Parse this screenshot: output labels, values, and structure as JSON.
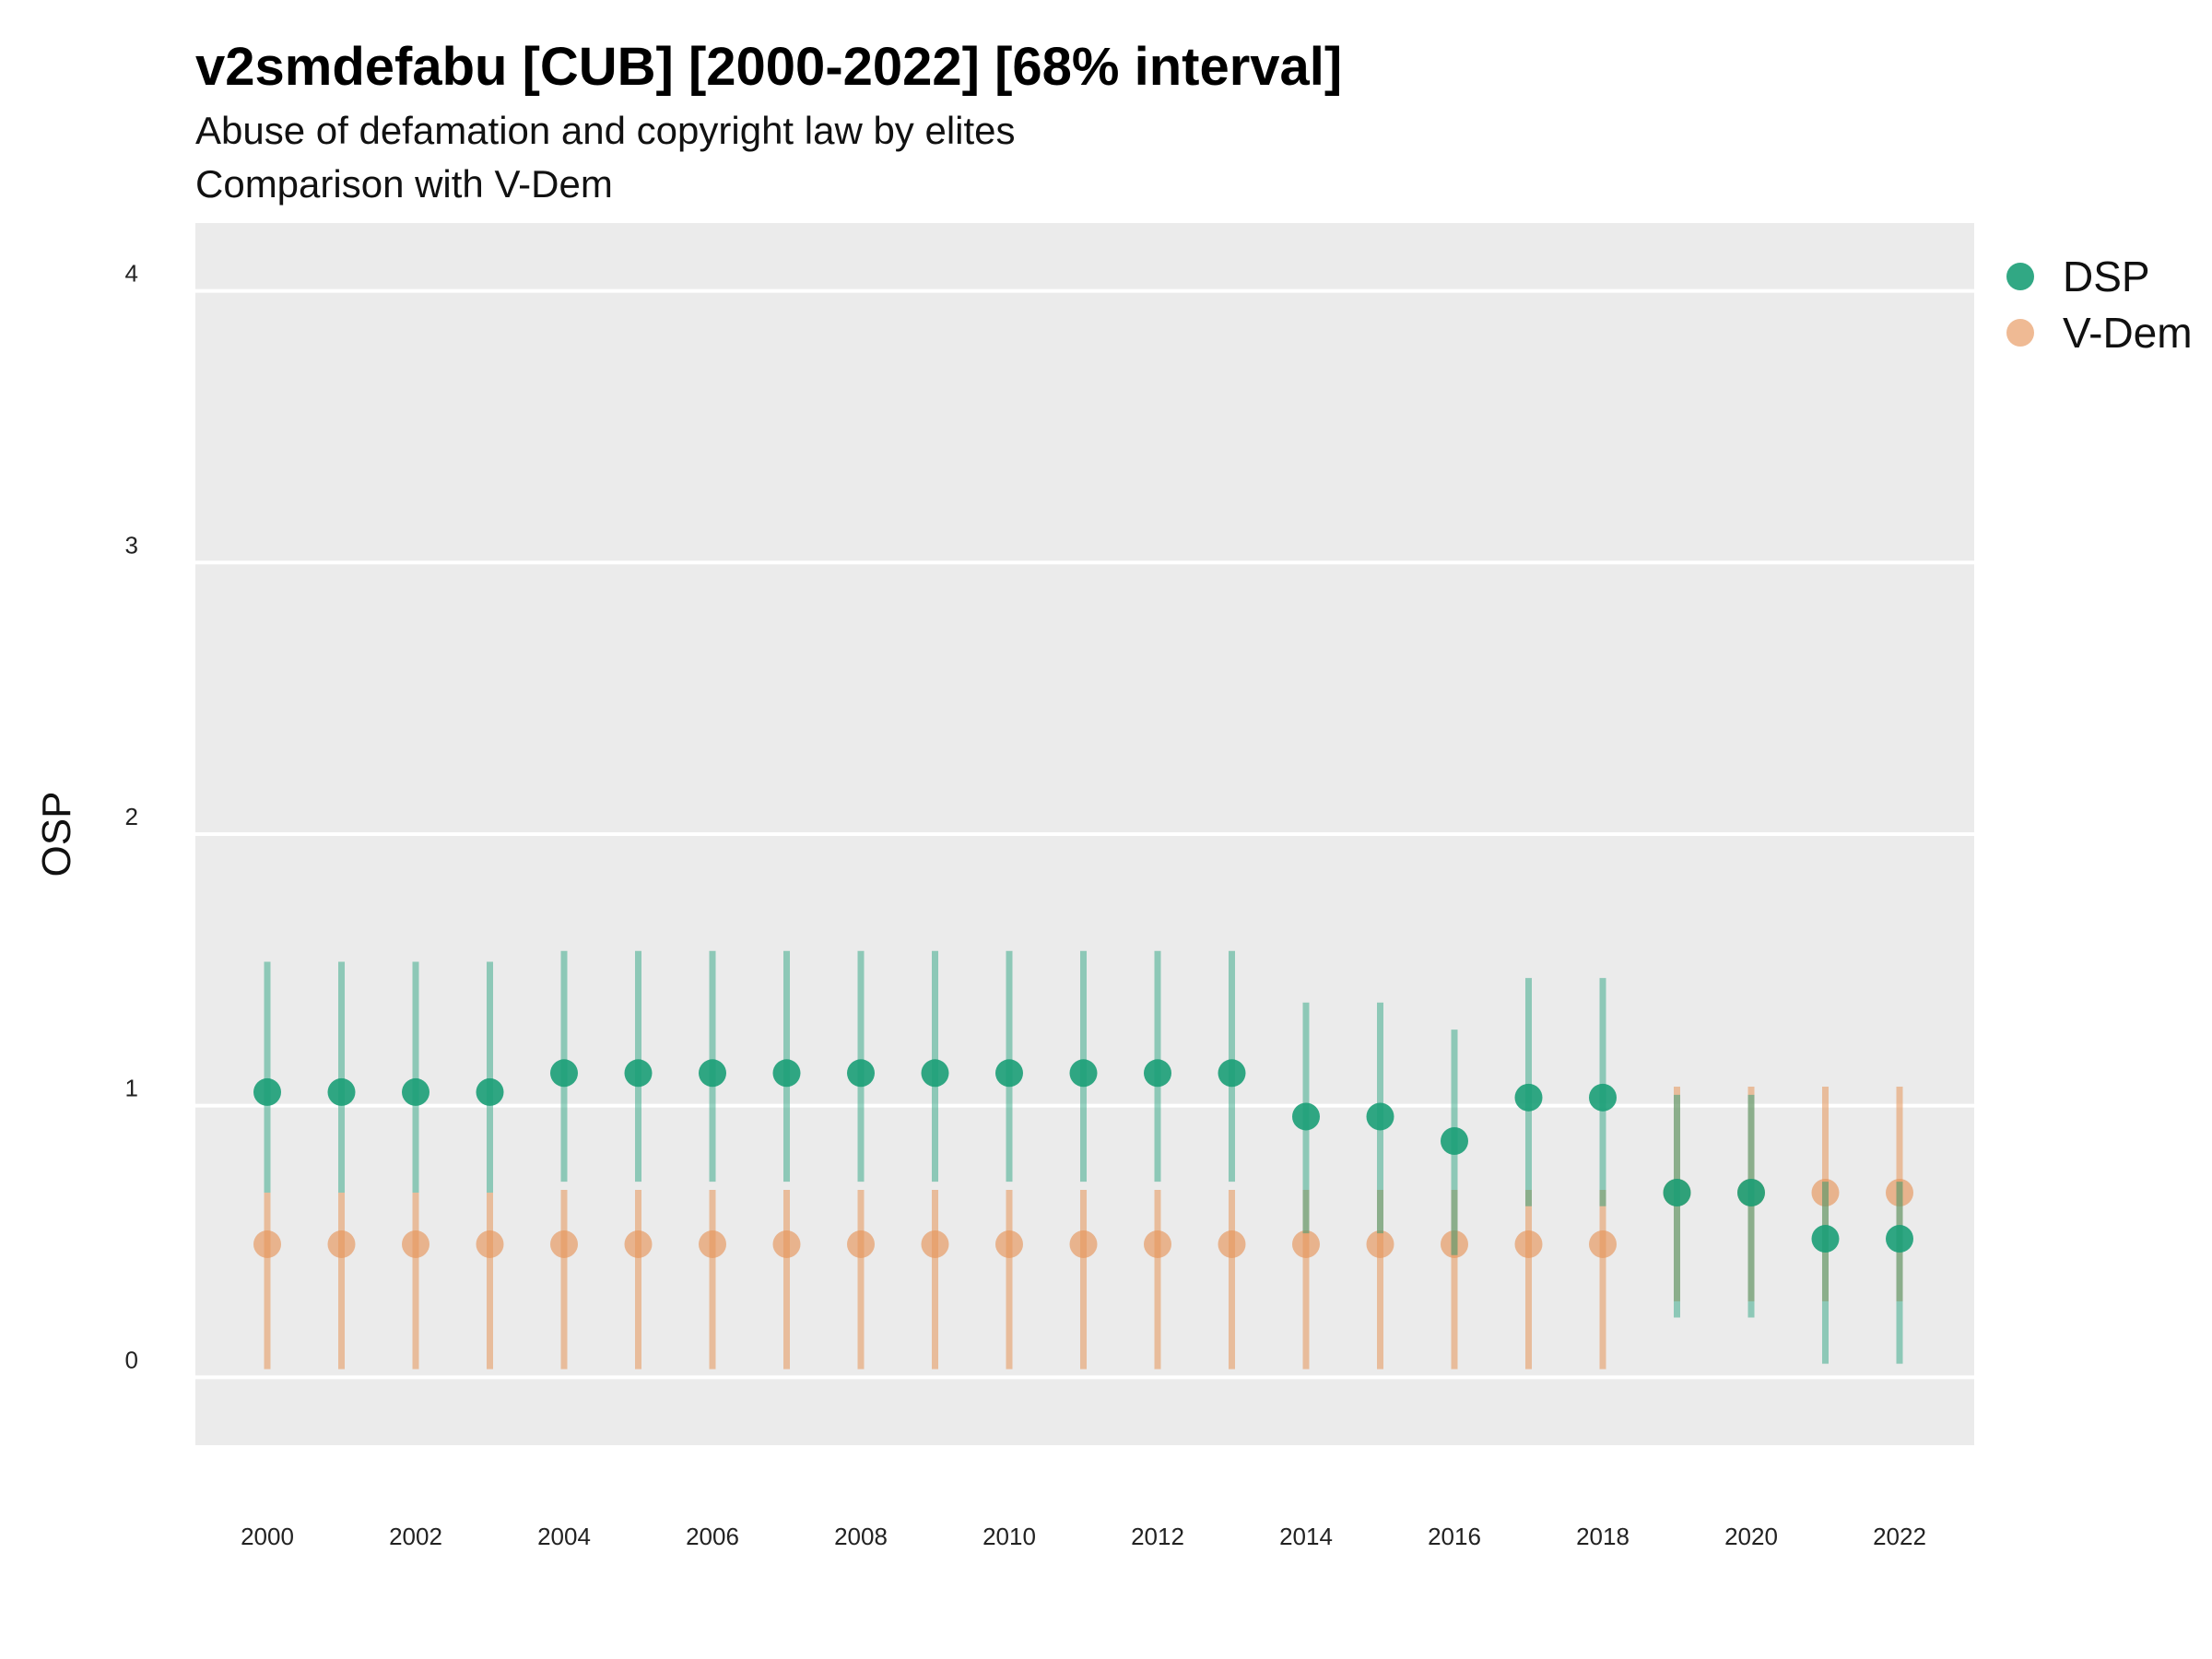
{
  "chart_data": {
    "type": "scatter",
    "title": "v2smdefabu [CUB] [2000-2022] [68% interval]",
    "subtitle": [
      "Abuse of defamation and copyright law by elites",
      "Comparison with V-Dem"
    ],
    "xlabel": "",
    "ylabel": "OSP",
    "x": [
      2000,
      2001,
      2002,
      2003,
      2004,
      2005,
      2006,
      2007,
      2008,
      2009,
      2010,
      2011,
      2012,
      2013,
      2014,
      2015,
      2016,
      2017,
      2018,
      2019,
      2020,
      2021,
      2022
    ],
    "x_ticks": [
      "2000",
      "2002",
      "2004",
      "2006",
      "2008",
      "2010",
      "2012",
      "2014",
      "2016",
      "2018",
      "2020",
      "2022"
    ],
    "y_ticks": [
      "0",
      "1",
      "2",
      "3",
      "4"
    ],
    "ylim": [
      -0.25,
      4.25
    ],
    "grid": true,
    "legend_position": "right",
    "series": [
      {
        "name": "DSP",
        "color": "#1b9e77",
        "values": [
          1.05,
          1.05,
          1.05,
          1.05,
          1.12,
          1.12,
          1.12,
          1.12,
          1.12,
          1.12,
          1.12,
          1.12,
          1.12,
          1.12,
          0.96,
          0.96,
          0.87,
          1.03,
          1.03,
          0.68,
          0.68,
          0.51,
          0.51
        ],
        "lower": [
          0.68,
          0.68,
          0.68,
          0.68,
          0.72,
          0.72,
          0.72,
          0.72,
          0.72,
          0.72,
          0.72,
          0.72,
          0.72,
          0.72,
          0.53,
          0.53,
          0.45,
          0.63,
          0.63,
          0.22,
          0.22,
          0.05,
          0.05
        ],
        "upper": [
          1.53,
          1.53,
          1.53,
          1.53,
          1.57,
          1.57,
          1.57,
          1.57,
          1.57,
          1.57,
          1.57,
          1.57,
          1.57,
          1.57,
          1.38,
          1.38,
          1.28,
          1.47,
          1.47,
          1.04,
          1.04,
          0.72,
          0.72
        ]
      },
      {
        "name": "V-Dem",
        "color": "#e6955a",
        "values": [
          0.49,
          0.49,
          0.49,
          0.49,
          0.49,
          0.49,
          0.49,
          0.49,
          0.49,
          0.49,
          0.49,
          0.49,
          0.49,
          0.49,
          0.49,
          0.49,
          0.49,
          0.49,
          0.49,
          0.68,
          0.68,
          0.68,
          0.68
        ],
        "lower": [
          0.03,
          0.03,
          0.03,
          0.03,
          0.03,
          0.03,
          0.03,
          0.03,
          0.03,
          0.03,
          0.03,
          0.03,
          0.03,
          0.03,
          0.03,
          0.03,
          0.03,
          0.03,
          0.03,
          0.28,
          0.28,
          0.28,
          0.28
        ],
        "upper": [
          0.68,
          0.68,
          0.68,
          0.68,
          0.69,
          0.69,
          0.69,
          0.69,
          0.69,
          0.69,
          0.69,
          0.69,
          0.69,
          0.69,
          0.69,
          0.69,
          0.69,
          0.69,
          0.69,
          1.07,
          1.07,
          1.07,
          1.07
        ]
      }
    ]
  }
}
